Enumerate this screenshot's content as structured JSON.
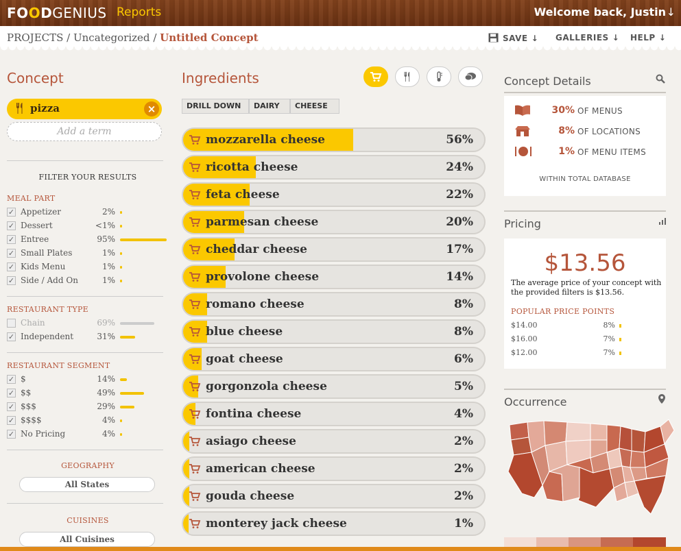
{
  "header": {
    "logo_a": "FO",
    "logo_o": "O",
    "logo_d": "D",
    "logo_genius": "GENIUS",
    "reports": "Reports",
    "welcome": "Welcome back, Justin",
    "welcome_arrow": "↓"
  },
  "breadcrumb": {
    "projects": "PROJECTS",
    "sep1": " / ",
    "category": "Uncategorized",
    "sep2": " / ",
    "current": "Untitled Concept"
  },
  "top_actions": {
    "save": "SAVE",
    "galleries": "GALLERIES",
    "help": "HELP",
    "arrow": "↓"
  },
  "concept": {
    "title": "Concept",
    "term": "pizza",
    "add_placeholder": "Add a term"
  },
  "filters": {
    "title": "FILTER YOUR RESULTS",
    "meal_part": {
      "title": "MEAL PART",
      "rows": [
        {
          "label": "Appetizer",
          "pct": "2%",
          "value": 2,
          "checked": true
        },
        {
          "label": "Dessert",
          "pct": "<1%",
          "value": 0.5,
          "checked": true
        },
        {
          "label": "Entree",
          "pct": "95%",
          "value": 95,
          "checked": true
        },
        {
          "label": "Small Plates",
          "pct": "1%",
          "value": 1,
          "checked": true
        },
        {
          "label": "Kids Menu",
          "pct": "1%",
          "value": 1,
          "checked": true
        },
        {
          "label": "Side / Add On",
          "pct": "1%",
          "value": 1,
          "checked": true
        }
      ]
    },
    "restaurant_type": {
      "title": "RESTAURANT TYPE",
      "rows": [
        {
          "label": "Chain",
          "pct": "69%",
          "value": 69,
          "checked": false
        },
        {
          "label": "Independent",
          "pct": "31%",
          "value": 31,
          "checked": true
        }
      ]
    },
    "restaurant_segment": {
      "title": "RESTAURANT SEGMENT",
      "rows": [
        {
          "label": "$",
          "pct": "14%",
          "value": 14,
          "checked": true
        },
        {
          "label": "$$",
          "pct": "49%",
          "value": 49,
          "checked": true
        },
        {
          "label": "$$$",
          "pct": "29%",
          "value": 29,
          "checked": true
        },
        {
          "label": "$$$$",
          "pct": "4%",
          "value": 4,
          "checked": true
        },
        {
          "label": "No Pricing",
          "pct": "4%",
          "value": 4,
          "checked": true
        }
      ]
    },
    "geography": {
      "title": "GEOGRAPHY",
      "value": "All States"
    },
    "cuisines": {
      "title": "CUISINES",
      "value": "All Cuisines"
    }
  },
  "ingredients": {
    "title": "Ingredients",
    "drill": [
      "DRILL DOWN",
      "DAIRY",
      "CHEESE"
    ],
    "items": [
      {
        "name": "mozzarella cheese",
        "pct": "56%",
        "value": 56
      },
      {
        "name": "ricotta cheese",
        "pct": "24%",
        "value": 24
      },
      {
        "name": "feta cheese",
        "pct": "22%",
        "value": 22
      },
      {
        "name": "parmesan cheese",
        "pct": "20%",
        "value": 20
      },
      {
        "name": "cheddar cheese",
        "pct": "17%",
        "value": 17
      },
      {
        "name": "provolone cheese",
        "pct": "14%",
        "value": 14
      },
      {
        "name": "romano cheese",
        "pct": "8%",
        "value": 8
      },
      {
        "name": "blue cheese",
        "pct": "8%",
        "value": 8
      },
      {
        "name": "goat cheese",
        "pct": "6%",
        "value": 6
      },
      {
        "name": "gorgonzola cheese",
        "pct": "5%",
        "value": 5
      },
      {
        "name": "fontina cheese",
        "pct": "4%",
        "value": 4
      },
      {
        "name": "asiago cheese",
        "pct": "2%",
        "value": 2
      },
      {
        "name": "american cheese",
        "pct": "2%",
        "value": 2
      },
      {
        "name": "gouda cheese",
        "pct": "2%",
        "value": 2
      },
      {
        "name": "monterey jack cheese",
        "pct": "1%",
        "value": 1
      }
    ]
  },
  "details": {
    "title": "Concept Details",
    "rows": [
      {
        "value": "30%",
        "label": "OF MENUS"
      },
      {
        "value": "8%",
        "label": "OF LOCATIONS"
      },
      {
        "value": "1%",
        "label": "OF MENU ITEMS"
      }
    ],
    "within": "WITHIN TOTAL DATABASE"
  },
  "pricing": {
    "title": "Pricing",
    "price": "$13.56",
    "description": "The average price of your concept with the provided filters is $13.56.",
    "popular_title": "POPULAR PRICE POINTS",
    "points": [
      {
        "price": "$14.00",
        "pct": "8%"
      },
      {
        "price": "$16.00",
        "pct": "7%"
      },
      {
        "price": "$12.00",
        "pct": "7%"
      }
    ]
  },
  "occurrence": {
    "title": "Occurrence"
  },
  "colors": {
    "accent": "#b5553a",
    "yellow": "#fbc800",
    "wood": "#7a3e1a"
  },
  "icons": {
    "cart": "cart-icon",
    "fork": "fork-knife-icon",
    "temp": "thermometer-icon",
    "chat": "chat-icon",
    "search": "search-icon",
    "bars": "bar-chart-icon",
    "pin": "map-pin-icon"
  }
}
